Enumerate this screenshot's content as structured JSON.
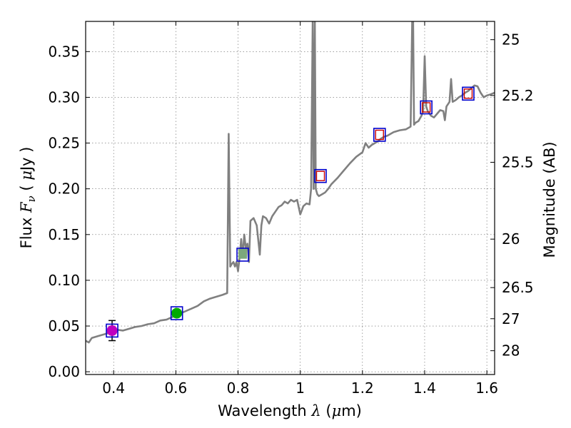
{
  "chart_data": {
    "type": "line",
    "xlabel": {
      "prefix": "Wavelength  ",
      "math": "λ",
      "suffix": " (",
      "unit_mu": "μ",
      "unit_rest": "m)"
    },
    "ylabel": {
      "prefix": "Flux  ",
      "math_main": "F",
      "math_sub": "ν",
      "suffix": "  ( ",
      "unit_mu": "μ",
      "unit_rest": "Jy )"
    },
    "y2label": "Magnitude (AB)",
    "xlim": [
      0.31,
      1.625
    ],
    "ylim": [
      -0.003,
      0.383
    ],
    "grid": true,
    "x_ticks": [
      {
        "v": 0.4,
        "label": "0.4"
      },
      {
        "v": 0.6,
        "label": "0.6"
      },
      {
        "v": 0.8,
        "label": "0.8"
      },
      {
        "v": 1.0,
        "label": "1"
      },
      {
        "v": 1.2,
        "label": "1.2"
      },
      {
        "v": 1.4,
        "label": "1.4"
      },
      {
        "v": 1.6,
        "label": "1.6"
      }
    ],
    "y_ticks": [
      {
        "v": 0.0,
        "label": "0.00"
      },
      {
        "v": 0.05,
        "label": "0.05"
      },
      {
        "v": 0.1,
        "label": "0.10"
      },
      {
        "v": 0.15,
        "label": "0.15"
      },
      {
        "v": 0.2,
        "label": "0.20"
      },
      {
        "v": 0.25,
        "label": "0.25"
      },
      {
        "v": 0.3,
        "label": "0.30"
      },
      {
        "v": 0.35,
        "label": "0.35"
      }
    ],
    "y2_ticks": [
      {
        "flux": 0.363,
        "label": "25"
      },
      {
        "flux": 0.302,
        "label": "25.2"
      },
      {
        "flux": 0.229,
        "label": "25.5"
      },
      {
        "flux": 0.145,
        "label": "26"
      },
      {
        "flux": 0.092,
        "label": "26.5"
      },
      {
        "flux": 0.058,
        "label": "27"
      },
      {
        "flux": 0.023,
        "label": "28"
      }
    ],
    "sed_color": "#808080",
    "sed": [
      [
        0.31,
        0.034
      ],
      [
        0.32,
        0.032
      ],
      [
        0.33,
        0.037
      ],
      [
        0.35,
        0.039
      ],
      [
        0.37,
        0.041
      ],
      [
        0.39,
        0.043
      ],
      [
        0.41,
        0.046
      ],
      [
        0.43,
        0.045
      ],
      [
        0.45,
        0.047
      ],
      [
        0.47,
        0.049
      ],
      [
        0.49,
        0.05
      ],
      [
        0.51,
        0.052
      ],
      [
        0.53,
        0.053
      ],
      [
        0.55,
        0.056
      ],
      [
        0.57,
        0.057
      ],
      [
        0.59,
        0.06
      ],
      [
        0.61,
        0.063
      ],
      [
        0.63,
        0.066
      ],
      [
        0.65,
        0.069
      ],
      [
        0.67,
        0.072
      ],
      [
        0.69,
        0.077
      ],
      [
        0.71,
        0.08
      ],
      [
        0.73,
        0.082
      ],
      [
        0.75,
        0.084
      ],
      [
        0.765,
        0.086
      ],
      [
        0.77,
        0.26
      ],
      [
        0.775,
        0.115
      ],
      [
        0.78,
        0.118
      ],
      [
        0.785,
        0.12
      ],
      [
        0.79,
        0.115
      ],
      [
        0.795,
        0.12
      ],
      [
        0.8,
        0.11
      ],
      [
        0.805,
        0.125
      ],
      [
        0.81,
        0.145
      ],
      [
        0.815,
        0.125
      ],
      [
        0.82,
        0.15
      ],
      [
        0.825,
        0.135
      ],
      [
        0.83,
        0.14
      ],
      [
        0.835,
        0.12
      ],
      [
        0.84,
        0.165
      ],
      [
        0.85,
        0.168
      ],
      [
        0.86,
        0.16
      ],
      [
        0.87,
        0.128
      ],
      [
        0.875,
        0.16
      ],
      [
        0.88,
        0.17
      ],
      [
        0.89,
        0.168
      ],
      [
        0.9,
        0.162
      ],
      [
        0.91,
        0.17
      ],
      [
        0.92,
        0.175
      ],
      [
        0.93,
        0.18
      ],
      [
        0.94,
        0.182
      ],
      [
        0.95,
        0.186
      ],
      [
        0.96,
        0.184
      ],
      [
        0.97,
        0.188
      ],
      [
        0.98,
        0.186
      ],
      [
        0.99,
        0.188
      ],
      [
        1.0,
        0.172
      ],
      [
        1.01,
        0.181
      ],
      [
        1.02,
        0.184
      ],
      [
        1.03,
        0.183
      ],
      [
        1.035,
        0.2
      ],
      [
        1.04,
        0.383
      ],
      [
        1.043,
        0.2
      ],
      [
        1.047,
        0.383
      ],
      [
        1.05,
        0.2
      ],
      [
        1.055,
        0.194
      ],
      [
        1.06,
        0.192
      ],
      [
        1.07,
        0.194
      ],
      [
        1.08,
        0.196
      ],
      [
        1.09,
        0.2
      ],
      [
        1.1,
        0.205
      ],
      [
        1.12,
        0.212
      ],
      [
        1.14,
        0.22
      ],
      [
        1.16,
        0.228
      ],
      [
        1.18,
        0.235
      ],
      [
        1.2,
        0.24
      ],
      [
        1.21,
        0.25
      ],
      [
        1.22,
        0.245
      ],
      [
        1.23,
        0.248
      ],
      [
        1.24,
        0.25
      ],
      [
        1.25,
        0.252
      ],
      [
        1.26,
        0.255
      ],
      [
        1.27,
        0.257
      ],
      [
        1.28,
        0.258
      ],
      [
        1.3,
        0.262
      ],
      [
        1.32,
        0.264
      ],
      [
        1.34,
        0.265
      ],
      [
        1.355,
        0.268
      ],
      [
        1.36,
        0.383
      ],
      [
        1.363,
        0.383
      ],
      [
        1.366,
        0.27
      ],
      [
        1.37,
        0.272
      ],
      [
        1.38,
        0.274
      ],
      [
        1.39,
        0.28
      ],
      [
        1.395,
        0.285
      ],
      [
        1.4,
        0.345
      ],
      [
        1.405,
        0.29
      ],
      [
        1.41,
        0.285
      ],
      [
        1.42,
        0.28
      ],
      [
        1.43,
        0.278
      ],
      [
        1.44,
        0.282
      ],
      [
        1.45,
        0.286
      ],
      [
        1.46,
        0.285
      ],
      [
        1.465,
        0.275
      ],
      [
        1.47,
        0.29
      ],
      [
        1.48,
        0.295
      ],
      [
        1.485,
        0.32
      ],
      [
        1.49,
        0.295
      ],
      [
        1.5,
        0.297
      ],
      [
        1.51,
        0.3
      ],
      [
        1.52,
        0.302
      ],
      [
        1.53,
        0.305
      ],
      [
        1.54,
        0.307
      ],
      [
        1.55,
        0.31
      ],
      [
        1.56,
        0.313
      ],
      [
        1.57,
        0.312
      ],
      [
        1.58,
        0.305
      ],
      [
        1.59,
        0.3
      ],
      [
        1.6,
        0.302
      ],
      [
        1.61,
        0.303
      ],
      [
        1.625,
        0.305
      ]
    ],
    "photometry": [
      {
        "x": 0.395,
        "y": 0.045,
        "err": 0.011,
        "color": "#bf00bf"
      },
      {
        "x": 0.603,
        "y": 0.064,
        "err": 0.003,
        "color": "#00aa00"
      },
      {
        "x": 0.815,
        "y": 0.129,
        "err": 0.0,
        "color": "#7ca87c"
      }
    ],
    "model_boxes": [
      {
        "x": 0.395,
        "y": 0.045
      },
      {
        "x": 0.603,
        "y": 0.064
      },
      {
        "x": 0.815,
        "y": 0.128
      },
      {
        "x": 1.065,
        "y": 0.214
      },
      {
        "x": 1.255,
        "y": 0.259
      },
      {
        "x": 1.405,
        "y": 0.289
      },
      {
        "x": 1.54,
        "y": 0.304
      }
    ],
    "red_boxes": [
      {
        "x": 1.065,
        "y": 0.214
      },
      {
        "x": 1.255,
        "y": 0.259
      },
      {
        "x": 1.405,
        "y": 0.289
      },
      {
        "x": 1.54,
        "y": 0.304
      }
    ],
    "box_color": "#0000cc",
    "red_color": "#cc0000",
    "error_color": "#000000"
  }
}
